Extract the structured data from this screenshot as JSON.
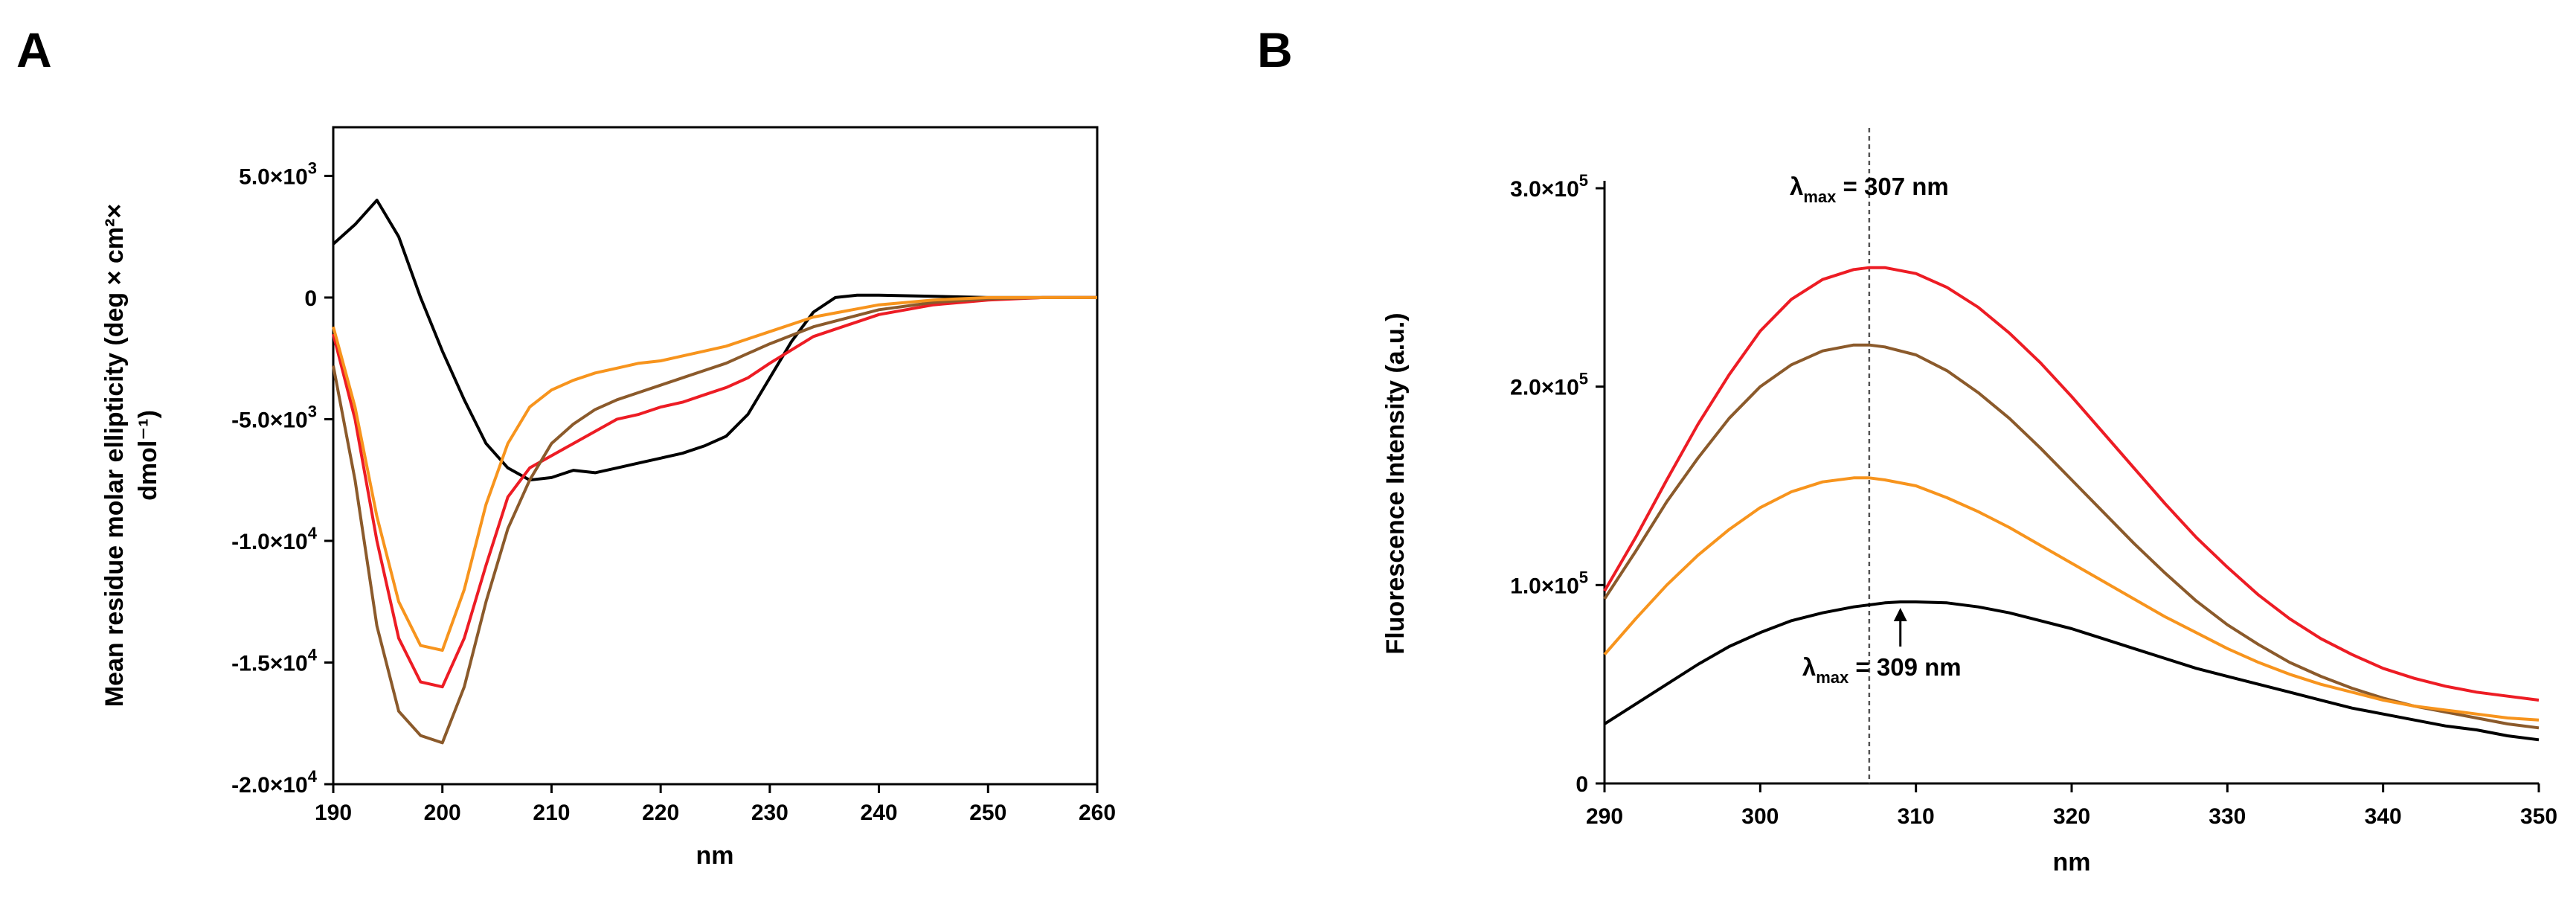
{
  "panels": [
    {
      "letter": "A",
      "chart_data": {
        "type": "line",
        "title": "",
        "xlabel": "nm",
        "ylabel_lines": [
          "Mean residue molar ellipticity (deg × cm²×",
          "dmol⁻¹)"
        ],
        "xlim": [
          190,
          260
        ],
        "ylim": [
          -20000,
          7000
        ],
        "x_ticks": [
          {
            "value": 190,
            "label": "190"
          },
          {
            "value": 200,
            "label": "200"
          },
          {
            "value": 210,
            "label": "210"
          },
          {
            "value": 220,
            "label": "220"
          },
          {
            "value": 230,
            "label": "230"
          },
          {
            "value": 240,
            "label": "240"
          },
          {
            "value": 250,
            "label": "250"
          },
          {
            "value": 260,
            "label": "260"
          }
        ],
        "y_ticks": [
          {
            "value": 5000,
            "mantissa": "5.0×10",
            "exponent": "3"
          },
          {
            "value": 0,
            "mantissa": "0",
            "exponent": ""
          },
          {
            "value": -5000,
            "mantissa": "-5.0×10",
            "exponent": "3"
          },
          {
            "value": -10000,
            "mantissa": "-1.0×10",
            "exponent": "4"
          },
          {
            "value": -15000,
            "mantissa": "-1.5×10",
            "exponent": "4"
          },
          {
            "value": -20000,
            "mantissa": "-2.0×10",
            "exponent": "4"
          }
        ],
        "series": [
          {
            "color": "#000000",
            "x": [
              190,
              192,
              194,
              196,
              198,
              200,
              202,
              204,
              206,
              208,
              210,
              212,
              214,
              216,
              218,
              220,
              222,
              224,
              226,
              228,
              230,
              232,
              234,
              236,
              238,
              240,
              245,
              250,
              255,
              260
            ],
            "y": [
              2200,
              3000,
              4000,
              2500,
              0,
              -2200,
              -4200,
              -6000,
              -7000,
              -7500,
              -7400,
              -7100,
              -7200,
              -7000,
              -6800,
              -6600,
              -6400,
              -6100,
              -5700,
              -4800,
              -3300,
              -1800,
              -600,
              0,
              100,
              100,
              50,
              0,
              0,
              0
            ]
          },
          {
            "color": "#ED1C24",
            "x": [
              190,
              192,
              194,
              196,
              198,
              200,
              202,
              204,
              206,
              208,
              210,
              212,
              214,
              216,
              218,
              220,
              222,
              224,
              226,
              228,
              230,
              234,
              240,
              245,
              250,
              255,
              260
            ],
            "y": [
              -1500,
              -5000,
              -10000,
              -14000,
              -15800,
              -16000,
              -14000,
              -11000,
              -8200,
              -7000,
              -6500,
              -6000,
              -5500,
              -5000,
              -4800,
              -4500,
              -4300,
              -4000,
              -3700,
              -3300,
              -2700,
              -1600,
              -700,
              -300,
              -100,
              0,
              0
            ]
          },
          {
            "color": "#8B5A2B",
            "x": [
              190,
              192,
              194,
              196,
              198,
              200,
              202,
              204,
              206,
              208,
              210,
              212,
              214,
              216,
              218,
              220,
              222,
              224,
              226,
              228,
              230,
              234,
              240,
              245,
              250,
              255,
              260
            ],
            "y": [
              -2800,
              -7500,
              -13500,
              -17000,
              -18000,
              -18300,
              -16000,
              -12500,
              -9500,
              -7500,
              -6000,
              -5200,
              -4600,
              -4200,
              -3900,
              -3600,
              -3300,
              -3000,
              -2700,
              -2300,
              -1900,
              -1200,
              -500,
              -200,
              -50,
              0,
              0
            ]
          },
          {
            "color": "#F7941D",
            "x": [
              190,
              192,
              194,
              196,
              198,
              200,
              202,
              204,
              206,
              208,
              210,
              212,
              214,
              216,
              218,
              220,
              222,
              224,
              226,
              228,
              230,
              234,
              240,
              245,
              250,
              255,
              260
            ],
            "y": [
              -1200,
              -4500,
              -9000,
              -12500,
              -14300,
              -14500,
              -12000,
              -8500,
              -6000,
              -4500,
              -3800,
              -3400,
              -3100,
              -2900,
              -2700,
              -2600,
              -2400,
              -2200,
              -2000,
              -1700,
              -1400,
              -800,
              -300,
              -100,
              0,
              0,
              0
            ]
          }
        ]
      }
    },
    {
      "letter": "B",
      "chart_data": {
        "type": "line",
        "title": "",
        "xlabel": "nm",
        "ylabel": "Fluorescence Intensity (a.u.)",
        "xlim": [
          290,
          350
        ],
        "ylim": [
          0,
          300000
        ],
        "x_ticks": [
          {
            "value": 290,
            "label": "290"
          },
          {
            "value": 300,
            "label": "300"
          },
          {
            "value": 310,
            "label": "310"
          },
          {
            "value": 320,
            "label": "320"
          },
          {
            "value": 330,
            "label": "330"
          },
          {
            "value": 340,
            "label": "340"
          },
          {
            "value": 350,
            "label": "350"
          }
        ],
        "y_ticks": [
          {
            "value": 0,
            "mantissa": "0",
            "exponent": ""
          },
          {
            "value": 100000,
            "mantissa": "1.0×10",
            "exponent": "5"
          },
          {
            "value": 200000,
            "mantissa": "2.0×10",
            "exponent": "5"
          },
          {
            "value": 300000,
            "mantissa": "3.0×10",
            "exponent": "5"
          }
        ],
        "series": [
          {
            "color": "#ED1C24",
            "x": [
              290,
              292,
              294,
              296,
              298,
              300,
              302,
              304,
              306,
              307,
              308,
              310,
              312,
              314,
              316,
              318,
              320,
              322,
              324,
              326,
              328,
              330,
              332,
              334,
              336,
              338,
              340,
              342,
              344,
              346,
              348,
              350
            ],
            "y": [
              97000,
              124000,
              153000,
              181000,
              206000,
              228000,
              244000,
              254000,
              259000,
              260000,
              260000,
              257000,
              250000,
              240000,
              227000,
              212000,
              195000,
              177000,
              159000,
              141000,
              124000,
              109000,
              95000,
              83000,
              73000,
              65000,
              58000,
              53000,
              49000,
              46000,
              44000,
              42000
            ]
          },
          {
            "color": "#8B5A2B",
            "x": [
              290,
              292,
              294,
              296,
              298,
              300,
              302,
              304,
              306,
              307,
              308,
              310,
              312,
              314,
              316,
              318,
              320,
              322,
              324,
              326,
              328,
              330,
              332,
              334,
              336,
              338,
              340,
              342,
              344,
              346,
              348,
              350
            ],
            "y": [
              93000,
              117000,
              142000,
              164000,
              184000,
              200000,
              211000,
              218000,
              221000,
              221000,
              220000,
              216000,
              208000,
              197000,
              184000,
              169000,
              153000,
              137000,
              121000,
              106000,
              92000,
              80000,
              70000,
              61000,
              54000,
              48000,
              43000,
              39000,
              36000,
              33000,
              30000,
              28000
            ]
          },
          {
            "color": "#F7941D",
            "x": [
              290,
              292,
              294,
              296,
              298,
              300,
              302,
              304,
              306,
              307,
              308,
              310,
              312,
              314,
              316,
              318,
              320,
              322,
              324,
              326,
              328,
              330,
              332,
              334,
              336,
              338,
              340,
              342,
              344,
              346,
              348,
              350
            ],
            "y": [
              65000,
              83000,
              100000,
              115000,
              128000,
              139000,
              147000,
              152000,
              154000,
              154000,
              153000,
              150000,
              144000,
              137000,
              129000,
              120000,
              111000,
              102000,
              93000,
              84000,
              76000,
              68000,
              61000,
              55000,
              50000,
              46000,
              42000,
              39000,
              37000,
              35000,
              33000,
              32000
            ]
          },
          {
            "color": "#000000",
            "x": [
              290,
              292,
              294,
              296,
              298,
              300,
              302,
              304,
              306,
              308,
              309,
              310,
              312,
              314,
              316,
              318,
              320,
              322,
              324,
              326,
              328,
              330,
              332,
              334,
              336,
              338,
              340,
              342,
              344,
              346,
              348,
              350
            ],
            "y": [
              30000,
              40000,
              50000,
              60000,
              69000,
              76000,
              82000,
              86000,
              89000,
              91000,
              91500,
              91500,
              91000,
              89000,
              86000,
              82000,
              78000,
              73000,
              68000,
              63000,
              58000,
              54000,
              50000,
              46000,
              42000,
              38000,
              35000,
              32000,
              29000,
              27000,
              24000,
              22000
            ]
          }
        ],
        "annotations": {
          "vline_x": 307,
          "top": {
            "lambda": "λ",
            "sub": "max",
            "text": " = 307 nm"
          },
          "bottom": {
            "lambda": "λ",
            "sub": "max",
            "text": " = 309 nm",
            "arrow_x": 309,
            "arrow_y": 91500
          }
        }
      }
    }
  ]
}
